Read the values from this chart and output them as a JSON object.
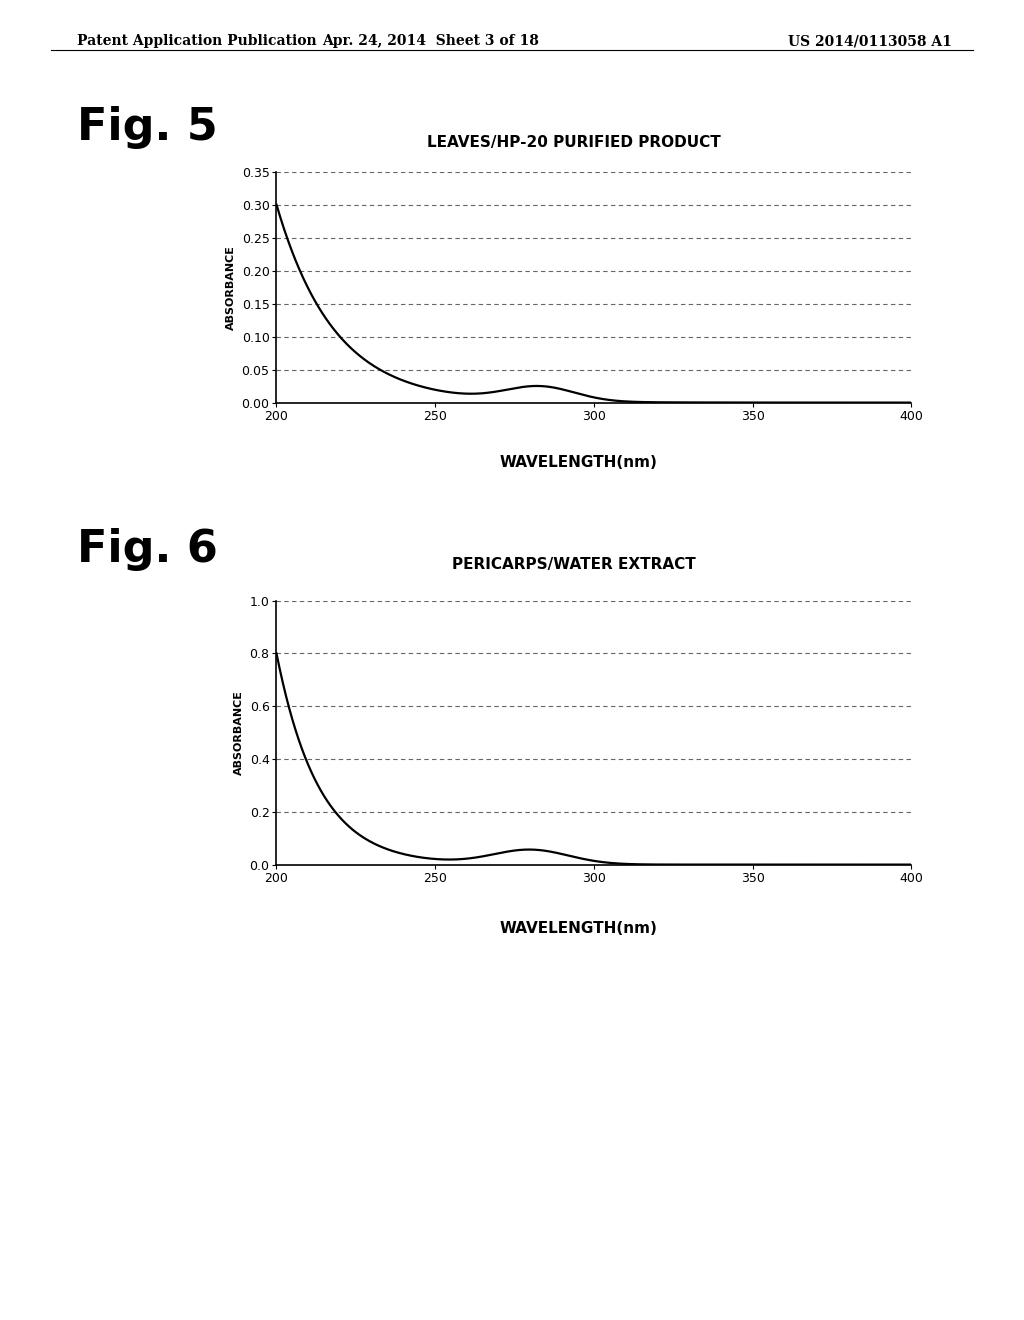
{
  "header_left": "Patent Application Publication",
  "header_mid": "Apr. 24, 2014  Sheet 3 of 18",
  "header_right": "US 2014/0113058 A1",
  "fig5_label": "Fig. 5",
  "fig5_title": "LEAVES/HP-20 PURIFIED PRODUCT",
  "fig5_xlabel": "WAVELENGTH(nm)",
  "fig5_ylabel": "ABSORBANCE",
  "fig5_xlim": [
    200,
    400
  ],
  "fig5_ylim": [
    0,
    0.35
  ],
  "fig5_yticks": [
    0,
    0.05,
    0.1,
    0.15,
    0.2,
    0.25,
    0.3,
    0.35
  ],
  "fig5_xticks": [
    200,
    250,
    300,
    350,
    400
  ],
  "fig6_label": "Fig. 6",
  "fig6_title": "PERICARPS/WATER EXTRACT",
  "fig6_xlabel": "WAVELENGTH(nm)",
  "fig6_ylabel": "ABSORBANCE",
  "fig6_xlim": [
    200,
    400
  ],
  "fig6_ylim": [
    0,
    1.0
  ],
  "fig6_yticks": [
    0,
    0.2,
    0.4,
    0.6,
    0.8,
    1.0
  ],
  "fig6_xticks": [
    200,
    250,
    300,
    350,
    400
  ],
  "background_color": "#ffffff",
  "line_color": "#000000",
  "grid_color": "#666666",
  "header_fontsize": 10,
  "figlabel_fontsize": 32,
  "title_fontsize": 11,
  "ylabel_fontsize": 8,
  "tick_fontsize": 9
}
